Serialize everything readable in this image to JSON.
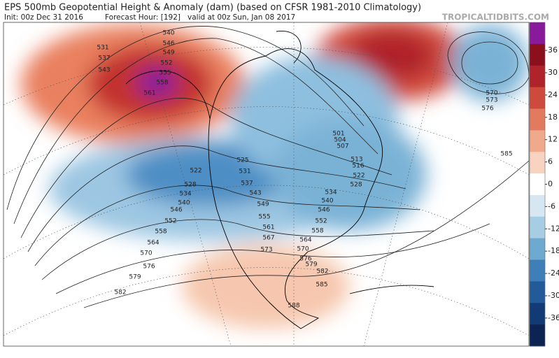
{
  "header": {
    "title": "EPS 500mb Geopotential Height & Anomaly (dam) (based on CFSR 1981-2010 Climatology)",
    "init": "Init: 00z Dec 31 2016",
    "forecast_hour": "Forecast Hour: [192]",
    "valid": "valid at 00z Sun, Jan 08 2017",
    "brand": "TROPICALTIDBITS.COM"
  },
  "colorbar": {
    "ticks": [
      36,
      30,
      24,
      18,
      12,
      6,
      0,
      -6,
      -12,
      -18,
      -24,
      -30,
      -36
    ],
    "colors": [
      "#8a1a9c",
      "#8c0f1d",
      "#b0232a",
      "#cd4a3c",
      "#e27a5f",
      "#f0a98a",
      "#f8d3bf",
      "#ffffff",
      "#d6e7f2",
      "#a7cde4",
      "#6ea9d0",
      "#3f7fb8",
      "#235a9a",
      "#123b75",
      "#0b2452"
    ]
  },
  "contour_labels": [
    531,
    537,
    543,
    540,
    546,
    549,
    552,
    555,
    558,
    561,
    522,
    528,
    534,
    540,
    546,
    552,
    558,
    564,
    570,
    576,
    579,
    582,
    525,
    531,
    537,
    543,
    549,
    555,
    561,
    567,
    573,
    501,
    504,
    507,
    513,
    516,
    522,
    528,
    534,
    540,
    546,
    552,
    558,
    564,
    570,
    576,
    579,
    582,
    585,
    588,
    570,
    573,
    576,
    585
  ]
}
